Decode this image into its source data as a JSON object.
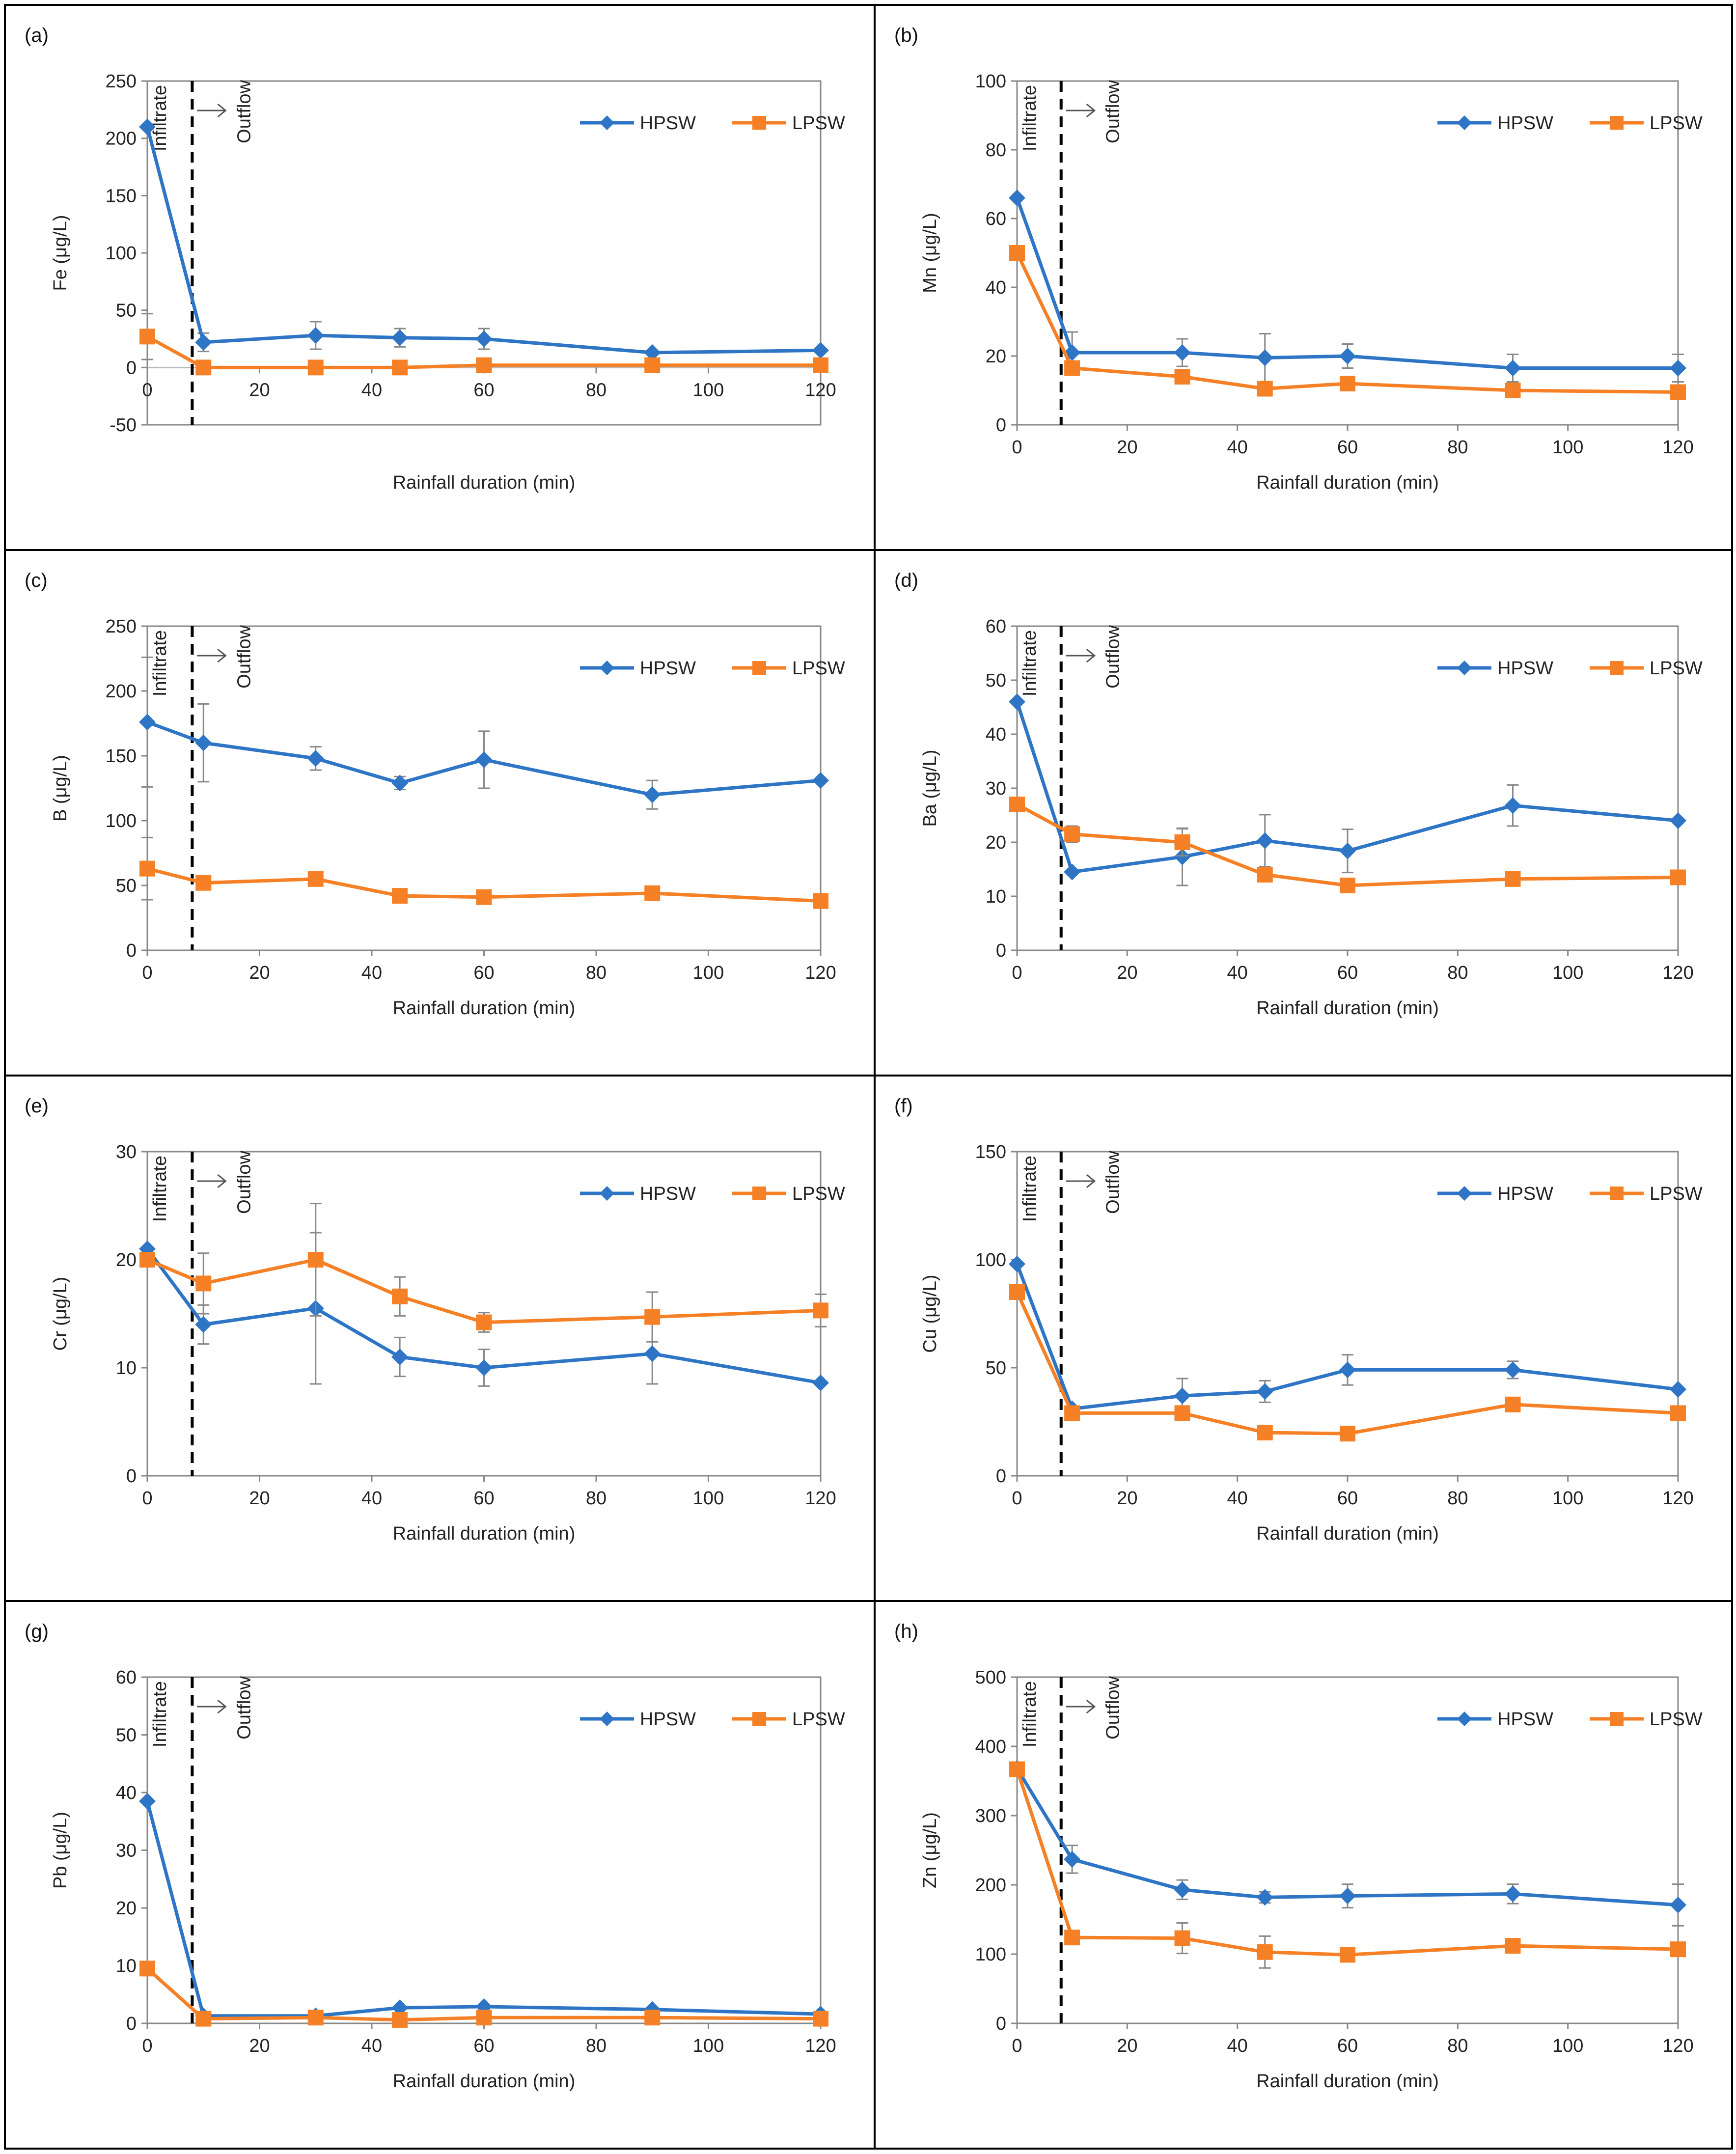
{
  "chart_data": [
    {
      "panel": "(a)",
      "type": "line",
      "ylabel": "Fe  (μg/L)",
      "xlabel": "Rainfall duration (min)",
      "ylim": [
        -50,
        250
      ],
      "yticks": [
        -50,
        0,
        50,
        100,
        150,
        200,
        250
      ],
      "xlim": [
        0,
        120
      ],
      "xticks": [
        0,
        20,
        40,
        60,
        80,
        100,
        120
      ],
      "x": [
        0,
        10,
        30,
        45,
        60,
        90,
        120
      ],
      "zero_axis": true,
      "annotations": {
        "left": "Infiltrate",
        "right": "Outflow",
        "divider_x": 8
      },
      "series": [
        {
          "name": "HPSW",
          "marker": "diamond",
          "values": [
            210,
            22,
            28,
            26,
            25,
            13,
            15
          ],
          "errors": [
            null,
            8,
            12,
            8,
            9,
            null,
            null
          ]
        },
        {
          "name": "LPSW",
          "marker": "square",
          "values": [
            27,
            0,
            0,
            0,
            2,
            2,
            2
          ],
          "errors": [
            20,
            null,
            null,
            null,
            null,
            null,
            null
          ]
        }
      ]
    },
    {
      "panel": "(b)",
      "type": "line",
      "ylabel": "Mn  (μg/L)",
      "xlabel": "Rainfall duration (min)",
      "ylim": [
        0,
        100
      ],
      "yticks": [
        0,
        20,
        40,
        60,
        80,
        100
      ],
      "xlim": [
        0,
        120
      ],
      "xticks": [
        0,
        20,
        40,
        60,
        80,
        100,
        120
      ],
      "x": [
        0,
        10,
        30,
        45,
        60,
        90,
        120
      ],
      "annotations": {
        "left": "Infiltrate",
        "right": "Outflow",
        "divider_x": 8
      },
      "series": [
        {
          "name": "HPSW",
          "marker": "diamond",
          "values": [
            66,
            21,
            21,
            19.5,
            20,
            16.5,
            16.5
          ],
          "errors": [
            null,
            6,
            4,
            7,
            3.5,
            4,
            4
          ]
        },
        {
          "name": "LPSW",
          "marker": "square",
          "values": [
            50,
            16.5,
            14,
            10.5,
            12,
            10,
            9.5
          ],
          "errors": [
            null,
            null,
            null,
            null,
            null,
            null,
            null
          ]
        }
      ]
    },
    {
      "panel": "(c)",
      "type": "line",
      "ylabel": "B  (μg/L)",
      "xlabel": "Rainfall duration (min)",
      "ylim": [
        0,
        250
      ],
      "yticks": [
        0,
        50,
        100,
        150,
        200,
        250
      ],
      "xlim": [
        0,
        120
      ],
      "xticks": [
        0,
        20,
        40,
        60,
        80,
        100,
        120
      ],
      "x": [
        0,
        10,
        30,
        45,
        60,
        90,
        120
      ],
      "annotations": {
        "left": "Infiltrate",
        "right": "Outflow",
        "divider_x": 8
      },
      "series": [
        {
          "name": "HPSW",
          "marker": "diamond",
          "values": [
            176,
            160,
            148,
            129,
            147,
            120,
            131
          ],
          "errors": [
            50,
            30,
            9,
            5,
            22,
            11,
            null
          ]
        },
        {
          "name": "LPSW",
          "marker": "square",
          "values": [
            63,
            52,
            55,
            42,
            41,
            44,
            38
          ],
          "errors": [
            24,
            null,
            null,
            null,
            null,
            null,
            null
          ]
        }
      ]
    },
    {
      "panel": "(d)",
      "type": "line",
      "ylabel": "Ba  (μg/L)",
      "xlabel": "Rainfall duration (min)",
      "ylim": [
        0,
        60
      ],
      "yticks": [
        0,
        10,
        20,
        30,
        40,
        50,
        60
      ],
      "xlim": [
        0,
        120
      ],
      "xticks": [
        0,
        20,
        40,
        60,
        80,
        100,
        120
      ],
      "x": [
        0,
        10,
        30,
        45,
        60,
        90,
        120
      ],
      "annotations": {
        "left": "Infiltrate",
        "right": "Outflow",
        "divider_x": 8
      },
      "series": [
        {
          "name": "HPSW",
          "marker": "diamond",
          "values": [
            46,
            14.5,
            17.3,
            20.3,
            18.4,
            26.8,
            24
          ],
          "errors": [
            null,
            null,
            5.3,
            4.8,
            4,
            3.8,
            null
          ]
        },
        {
          "name": "LPSW",
          "marker": "square",
          "values": [
            27,
            21.5,
            20,
            14,
            12,
            13.2,
            13.5
          ],
          "errors": [
            null,
            1.5,
            2.5,
            null,
            null,
            null,
            null
          ]
        }
      ]
    },
    {
      "panel": "(e)",
      "type": "line",
      "ylabel": "Cr  (μg/L)",
      "xlabel": "Rainfall duration (min)",
      "ylim": [
        0,
        30
      ],
      "yticks": [
        0,
        10,
        20,
        30
      ],
      "xlim": [
        0,
        120
      ],
      "xticks": [
        0,
        20,
        40,
        60,
        80,
        100,
        120
      ],
      "x": [
        0,
        10,
        30,
        45,
        60,
        90,
        120
      ],
      "annotations": {
        "left": "Infiltrate",
        "right": "Outflow",
        "divider_x": 8
      },
      "series": [
        {
          "name": "HPSW",
          "marker": "diamond",
          "values": [
            21,
            14,
            15.5,
            11,
            10,
            11.3,
            8.6
          ],
          "errors": [
            null,
            1.8,
            7,
            1.8,
            1.7,
            2.8,
            null
          ]
        },
        {
          "name": "LPSW",
          "marker": "square",
          "values": [
            20,
            17.8,
            20,
            16.6,
            14.2,
            14.7,
            15.3
          ],
          "errors": [
            null,
            2.8,
            5.2,
            1.8,
            0.9,
            2.3,
            1.5
          ]
        }
      ]
    },
    {
      "panel": "(f)",
      "type": "line",
      "ylabel": "Cu  (μg/L)",
      "xlabel": "Rainfall duration (min)",
      "ylim": [
        0,
        150
      ],
      "yticks": [
        0,
        50,
        100,
        150
      ],
      "xlim": [
        0,
        120
      ],
      "xticks": [
        0,
        20,
        40,
        60,
        80,
        100,
        120
      ],
      "x": [
        0,
        10,
        30,
        45,
        60,
        90,
        120
      ],
      "annotations": {
        "left": "Infiltrate",
        "right": "Outflow",
        "divider_x": 8
      },
      "series": [
        {
          "name": "HPSW",
          "marker": "diamond",
          "values": [
            98,
            31,
            37,
            39,
            49,
            49,
            40
          ],
          "errors": [
            null,
            null,
            8,
            5,
            7,
            4,
            null
          ]
        },
        {
          "name": "LPSW",
          "marker": "square",
          "values": [
            85,
            29,
            29,
            20,
            19.5,
            33,
            29
          ],
          "errors": [
            null,
            null,
            null,
            null,
            null,
            null,
            null
          ]
        }
      ]
    },
    {
      "panel": "(g)",
      "type": "line",
      "ylabel": "Pb  (μg/L)",
      "xlabel": "Rainfall duration (min)",
      "ylim": [
        0,
        60
      ],
      "yticks": [
        0,
        10,
        20,
        30,
        40,
        50,
        60
      ],
      "xlim": [
        0,
        120
      ],
      "xticks": [
        0,
        20,
        40,
        60,
        80,
        100,
        120
      ],
      "x": [
        0,
        10,
        30,
        45,
        60,
        90,
        120
      ],
      "annotations": {
        "left": "Infiltrate",
        "right": "Outflow",
        "divider_x": 8
      },
      "series": [
        {
          "name": "HPSW",
          "marker": "diamond",
          "values": [
            38.5,
            1.3,
            1.3,
            2.7,
            2.9,
            2.4,
            1.6
          ],
          "errors": [
            null,
            null,
            null,
            null,
            null,
            null,
            null
          ]
        },
        {
          "name": "LPSW",
          "marker": "square",
          "values": [
            9.5,
            0.8,
            1.0,
            0.6,
            1.0,
            1.0,
            0.8
          ],
          "errors": [
            null,
            null,
            null,
            null,
            null,
            null,
            null
          ]
        }
      ]
    },
    {
      "panel": "(h)",
      "type": "line",
      "ylabel": "Zn  (μg/L)",
      "xlabel": "Rainfall duration (min)",
      "ylim": [
        0,
        500
      ],
      "yticks": [
        0,
        100,
        200,
        300,
        400,
        500
      ],
      "xlim": [
        0,
        120
      ],
      "xticks": [
        0,
        20,
        40,
        60,
        80,
        100,
        120
      ],
      "x": [
        0,
        10,
        30,
        45,
        60,
        90,
        120
      ],
      "annotations": {
        "left": "Infiltrate",
        "right": "Outflow",
        "divider_x": 8
      },
      "series": [
        {
          "name": "HPSW",
          "marker": "diamond",
          "values": [
            368,
            237,
            193,
            182,
            184,
            187,
            171
          ],
          "errors": [
            null,
            20,
            14,
            8,
            17,
            14,
            30
          ]
        },
        {
          "name": "LPSW",
          "marker": "square",
          "values": [
            367,
            124,
            123,
            103,
            99,
            112,
            107
          ],
          "errors": [
            null,
            null,
            22,
            23,
            null,
            null,
            null
          ]
        }
      ]
    }
  ],
  "colors": {
    "HPSW": "#2E75C6",
    "LPSW": "#F58025",
    "axis": "#888888",
    "text": "#222222"
  }
}
